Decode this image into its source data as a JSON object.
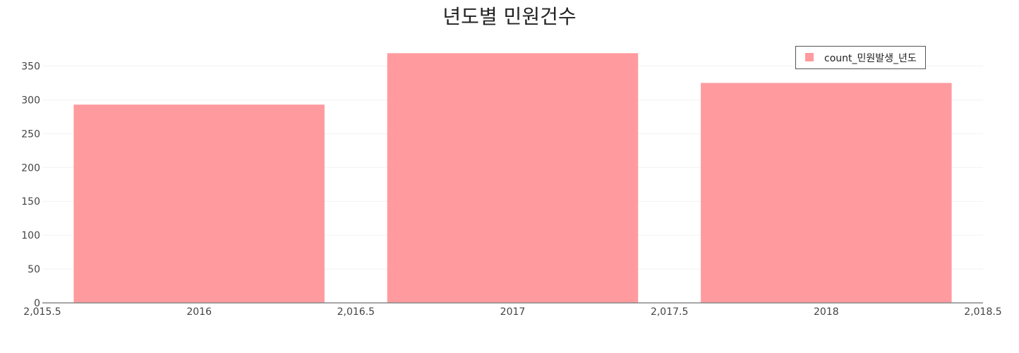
{
  "chart_data": {
    "type": "bar",
    "title": "년도별 민원건수",
    "xlabel": "",
    "ylabel": "",
    "x": [
      2016,
      2017,
      2018
    ],
    "values": [
      293,
      369,
      325
    ],
    "series": [
      {
        "name": "count_민원발생_년도",
        "x": [
          2016,
          2017,
          2018
        ],
        "values": [
          293,
          369,
          325
        ]
      }
    ],
    "legend_label_visible": "count_민원발생_년도",
    "xlim": [
      2015.5,
      2018.5
    ],
    "ylim": [
      0,
      385
    ],
    "x_ticks": [
      2015.5,
      2016,
      2016.5,
      2017,
      2017.5,
      2018,
      2018.5
    ],
    "x_tick_labels": [
      "2,015.5",
      "2016",
      "2,016.5",
      "2017",
      "2,017.5",
      "2018",
      "2,018.5"
    ],
    "y_ticks": [
      0,
      50,
      100,
      150,
      200,
      250,
      300,
      350
    ],
    "y_tick_labels": [
      "0",
      "50",
      "100",
      "150",
      "200",
      "250",
      "300",
      "350"
    ],
    "bar_width": 0.8,
    "grid": true,
    "legend_position": "top-right",
    "colors": {
      "bar": "#ff9a9e",
      "axis": "#888888",
      "grid": "#f2f2f2",
      "legend_border": "#555555"
    }
  }
}
